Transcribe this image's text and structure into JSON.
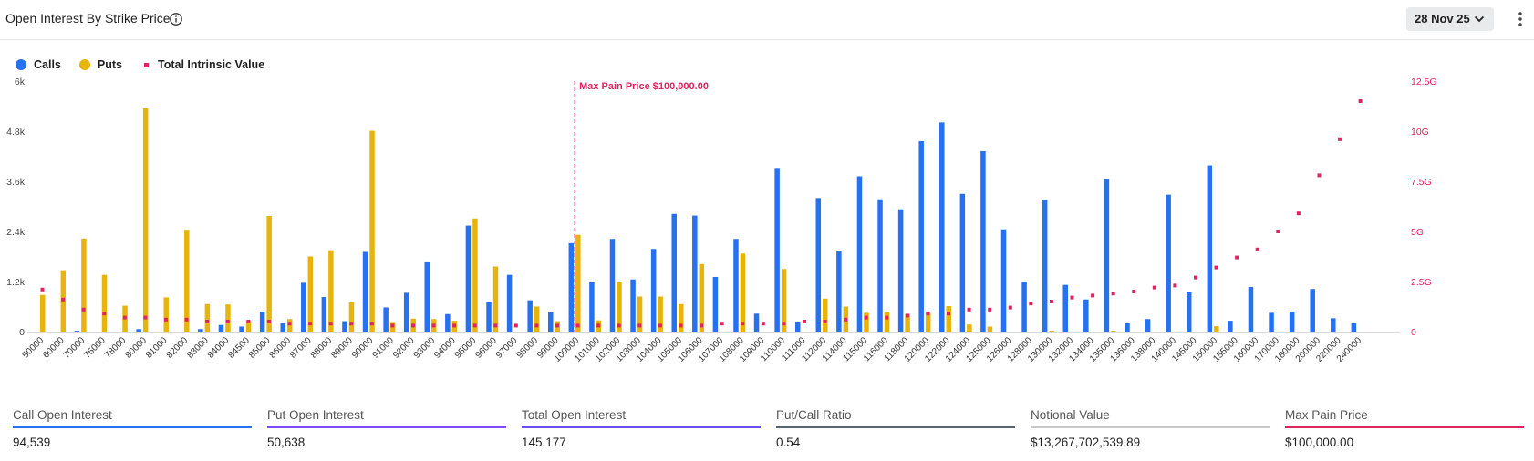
{
  "header": {
    "title": "Open Interest By Strike Price",
    "date_label": "28 Nov 25"
  },
  "colors": {
    "calls": "#2670f2",
    "puts": "#e6b40c",
    "tiv": "#e0245e",
    "max_pain": "#e0245e"
  },
  "legend": [
    {
      "label": "Calls",
      "color": "#2670f2",
      "icon": "circle"
    },
    {
      "label": "Puts",
      "color": "#e6b40c",
      "icon": "circle"
    },
    {
      "label": "Total Intrinsic Value",
      "color": "#e0245e",
      "icon": "square"
    }
  ],
  "chart_data": {
    "type": "bar",
    "categories": [
      "50000",
      "60000",
      "70000",
      "75000",
      "78000",
      "80000",
      "81000",
      "82000",
      "83000",
      "84000",
      "84500",
      "85000",
      "86000",
      "87000",
      "88000",
      "89000",
      "90000",
      "91000",
      "92000",
      "93000",
      "94000",
      "95000",
      "96000",
      "97000",
      "98000",
      "99000",
      "100000",
      "101000",
      "102000",
      "103000",
      "104000",
      "105000",
      "106000",
      "107000",
      "108000",
      "109000",
      "110000",
      "111000",
      "112000",
      "114000",
      "115000",
      "116000",
      "118000",
      "120000",
      "122000",
      "124000",
      "125000",
      "126000",
      "128000",
      "130000",
      "132000",
      "134000",
      "135000",
      "136000",
      "138000",
      "140000",
      "145000",
      "150000",
      "155000",
      "160000",
      "170000",
      "180000",
      "200000",
      "220000",
      "240000"
    ],
    "series": [
      {
        "name": "Calls",
        "axis": "left",
        "type": "bar",
        "values": [
          0,
          0,
          20,
          0,
          0,
          60,
          0,
          0,
          60,
          160,
          120,
          480,
          200,
          1170,
          830,
          250,
          1910,
          580,
          930,
          1660,
          420,
          2540,
          700,
          1360,
          750,
          460,
          2120,
          1180,
          2220,
          1250,
          1980,
          2820,
          2780,
          1310,
          2220,
          430,
          3920,
          240,
          3200,
          1940,
          3720,
          3170,
          2930,
          4560,
          5010,
          3300,
          4320,
          2450,
          1190,
          3160,
          1120,
          770,
          3660,
          200,
          300,
          3280,
          940,
          3980,
          260,
          1070,
          450,
          480,
          1020,
          320,
          200
        ]
      },
      {
        "name": "Puts",
        "axis": "left",
        "type": "bar",
        "values": [
          880,
          1470,
          2230,
          1360,
          620,
          5350,
          820,
          2440,
          660,
          650,
          250,
          2770,
          300,
          1800,
          1950,
          700,
          4810,
          230,
          310,
          300,
          260,
          2710,
          1560,
          0,
          600,
          250,
          2320,
          270,
          1180,
          840,
          840,
          660,
          1620,
          0,
          1870,
          0,
          1500,
          0,
          790,
          600,
          450,
          460,
          420,
          450,
          610,
          170,
          120,
          0,
          0,
          20,
          0,
          0,
          20,
          0,
          0,
          0,
          0,
          130,
          0,
          0,
          0,
          0,
          0,
          0,
          0
        ]
      },
      {
        "name": "Total Intrinsic Value",
        "axis": "right",
        "type": "scatter",
        "values": [
          2.1,
          1.6,
          1.1,
          0.9,
          0.7,
          0.7,
          0.6,
          0.6,
          0.5,
          0.5,
          0.5,
          0.5,
          0.4,
          0.4,
          0.4,
          0.4,
          0.4,
          0.3,
          0.3,
          0.3,
          0.3,
          0.3,
          0.3,
          0.3,
          0.3,
          0.3,
          0.3,
          0.3,
          0.3,
          0.3,
          0.3,
          0.3,
          0.3,
          0.4,
          0.4,
          0.4,
          0.4,
          0.5,
          0.5,
          0.6,
          0.7,
          0.7,
          0.8,
          0.9,
          0.9,
          1.1,
          1.1,
          1.2,
          1.4,
          1.5,
          1.7,
          1.8,
          1.9,
          2.0,
          2.2,
          2.3,
          2.7,
          3.2,
          3.7,
          4.1,
          5.0,
          5.9,
          7.8,
          9.6,
          11.5
        ]
      }
    ],
    "left_axis": {
      "ticks": [
        "0",
        "1.2k",
        "2.4k",
        "3.6k",
        "4.8k",
        "6k"
      ],
      "ylim": [
        0,
        6000
      ]
    },
    "right_axis": {
      "ticks": [
        "0",
        "2.5G",
        "5G",
        "7.5G",
        "10G",
        "12.5G"
      ],
      "ylim": [
        0,
        12.5
      ]
    },
    "annotation": {
      "label": "Max Pain Price $100,000.00",
      "category": "100000"
    },
    "legend_position": "top-left",
    "grid": false
  },
  "stats": [
    {
      "label": "Call Open Interest",
      "value": "94,539",
      "color": "#2670f2"
    },
    {
      "label": "Put Open Interest",
      "value": "50,638",
      "color": "#7c4dff"
    },
    {
      "label": "Total Open Interest",
      "value": "145,177",
      "color": "#6a4cf0"
    },
    {
      "label": "Put/Call Ratio",
      "value": "0.54",
      "color": "#5c6370"
    },
    {
      "label": "Notional Value",
      "value": "$13,267,702,539.89",
      "color": "#c8c8c8"
    },
    {
      "label": "Max Pain Price",
      "value": "$100,000.00",
      "color": "#e0245e"
    }
  ]
}
